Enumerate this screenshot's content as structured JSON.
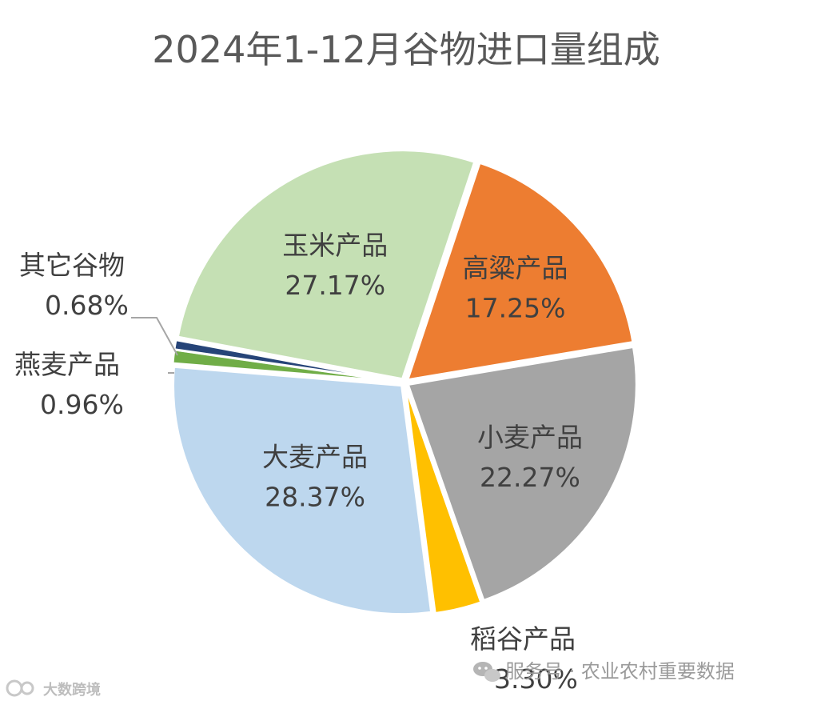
{
  "chart_data": {
    "type": "pie",
    "title": "2024年1-12月谷物进口量组成",
    "slices": [
      {
        "name": "高粱产品",
        "value": 17.25,
        "label": "17.25%",
        "color": "#ED7D31"
      },
      {
        "name": "小麦产品",
        "value": 22.27,
        "label": "22.27%",
        "color": "#A5A5A5"
      },
      {
        "name": "稻谷产品",
        "value": 3.3,
        "label": "3.30%",
        "color": "#FFC000"
      },
      {
        "name": "大麦产品",
        "value": 28.37,
        "label": "28.37%",
        "color": "#BDD7EE"
      },
      {
        "name": "燕麦产品",
        "value": 0.96,
        "label": "0.96%",
        "color": "#70AD47"
      },
      {
        "name": "其它谷物",
        "value": 0.68,
        "label": "0.68%",
        "color": "#264478"
      },
      {
        "name": "玉米产品",
        "value": 27.17,
        "label": "27.17%",
        "color": "#C5E0B4"
      }
    ]
  },
  "watermark": {
    "service": "服务号 · 农业农村重要数据",
    "brand": "大数跨境"
  },
  "icons": {
    "wechat": "wechat-icon",
    "brand_logo": "brand-logo-icon"
  }
}
